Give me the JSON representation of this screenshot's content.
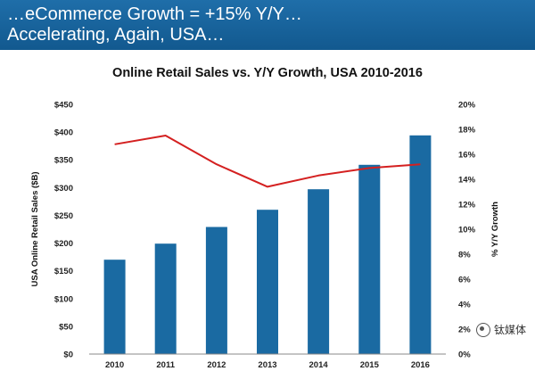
{
  "banner": {
    "line1": "…eCommerce Growth = +15% Y/Y…",
    "line2": "Accelerating, Again, USA…",
    "color": "#1a63a0"
  },
  "watermark": {
    "text": "钛媒体",
    "icon": "logo-icon"
  },
  "chart_data": {
    "type": "bar",
    "title": "Online Retail Sales vs. Y/Y Growth, USA 2010-2016",
    "categories": [
      "2010",
      "2011",
      "2012",
      "2013",
      "2014",
      "2015",
      "2016"
    ],
    "series": [
      {
        "values": [
          170,
          199,
          229,
          260,
          297,
          341,
          394
        ],
        "color": "#1a6aa2",
        "axis": "left"
      },
      {
        "values": [
          16.8,
          17.5,
          15.2,
          13.4,
          14.3,
          14.9,
          15.2
        ],
        "color": "#d42020",
        "axis": "right",
        "type": "line"
      }
    ],
    "ylabel": "USA Online Retail Sales ($B)",
    "ylabel_right": "% Y/Y Growth",
    "ylim": [
      0,
      450
    ],
    "ylim_right": [
      0,
      20
    ],
    "yticks": [
      "$0",
      "$50",
      "$100",
      "$150",
      "$200",
      "$250",
      "$300",
      "$350",
      "$400",
      "$450"
    ],
    "yticks_right": [
      "0%",
      "2%",
      "4%",
      "6%",
      "8%",
      "10%",
      "12%",
      "14%",
      "16%",
      "18%",
      "20%"
    ],
    "grid": false,
    "legend": "none"
  }
}
